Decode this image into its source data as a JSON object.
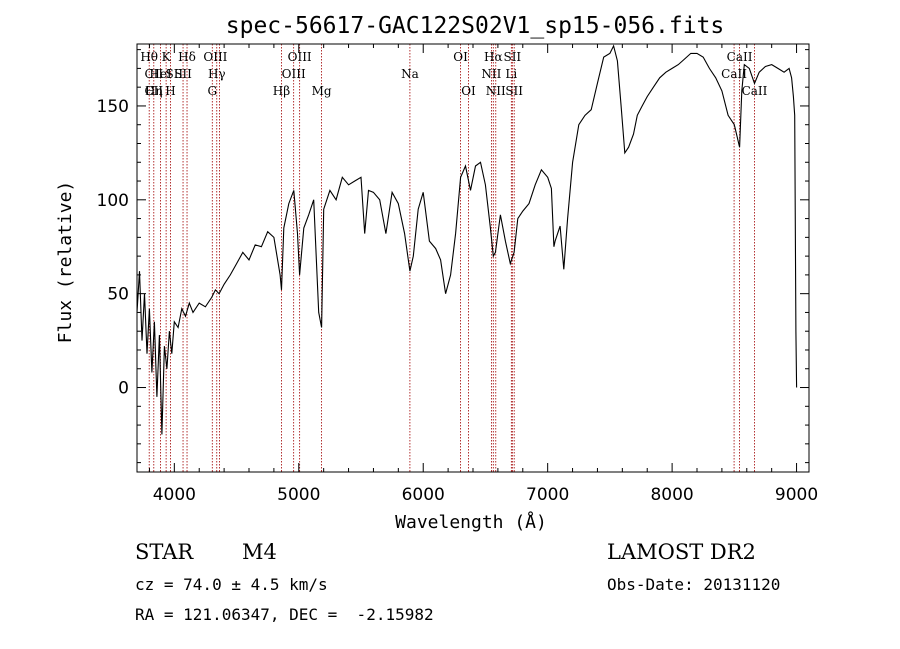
{
  "chart_data": {
    "type": "line",
    "title": "spec-56617-GAC122S02V1_sp15-056.fits",
    "xlabel": "Wavelength (Å)",
    "ylabel": "Flux (relative)",
    "xlim": [
      3700,
      9100
    ],
    "ylim": [
      -45,
      183
    ],
    "xticks": [
      4000,
      5000,
      6000,
      7000,
      8000,
      9000
    ],
    "yticks": [
      0,
      50,
      100,
      150
    ],
    "grid": false,
    "series": [
      {
        "color": "#000000",
        "x": [
          3700,
          3720,
          3740,
          3760,
          3780,
          3800,
          3820,
          3840,
          3860,
          3880,
          3900,
          3920,
          3940,
          3960,
          3980,
          4000,
          4030,
          4060,
          4090,
          4120,
          4150,
          4200,
          4250,
          4300,
          4330,
          4360,
          4400,
          4450,
          4500,
          4550,
          4600,
          4650,
          4700,
          4750,
          4800,
          4850,
          4861,
          4880,
          4920,
          4960,
          4990,
          5007,
          5040,
          5080,
          5120,
          5160,
          5183,
          5200,
          5250,
          5300,
          5350,
          5400,
          5450,
          5500,
          5530,
          5560,
          5600,
          5650,
          5700,
          5750,
          5800,
          5850,
          5893,
          5920,
          5960,
          6000,
          6050,
          6100,
          6140,
          6180,
          6220,
          6260,
          6300,
          6340,
          6380,
          6420,
          6460,
          6500,
          6540,
          6563,
          6580,
          6620,
          6660,
          6700,
          6730,
          6760,
          6800,
          6850,
          6900,
          6950,
          7000,
          7030,
          7050,
          7060,
          7080,
          7100,
          7130,
          7160,
          7200,
          7250,
          7300,
          7350,
          7400,
          7450,
          7500,
          7530,
          7560,
          7590,
          7620,
          7650,
          7690,
          7720,
          7760,
          7800,
          7850,
          7900,
          7950,
          8000,
          8050,
          8100,
          8150,
          8200,
          8250,
          8300,
          8350,
          8400,
          8450,
          8500,
          8542,
          8560,
          8580,
          8620,
          8662,
          8700,
          8750,
          8800,
          8850,
          8900,
          8940,
          8960,
          8975,
          8985,
          8995,
          9000
        ],
        "y": [
          40,
          62,
          25,
          50,
          18,
          42,
          8,
          35,
          -5,
          28,
          -25,
          22,
          10,
          30,
          18,
          35,
          32,
          42,
          38,
          45,
          40,
          45,
          43,
          48,
          52,
          50,
          55,
          60,
          66,
          72,
          68,
          76,
          75,
          83,
          80,
          60,
          52,
          85,
          98,
          105,
          82,
          60,
          85,
          92,
          100,
          40,
          32,
          95,
          105,
          100,
          112,
          108,
          110,
          112,
          82,
          105,
          104,
          100,
          82,
          104,
          98,
          82,
          62,
          70,
          95,
          104,
          78,
          74,
          68,
          50,
          60,
          82,
          112,
          118,
          105,
          118,
          120,
          108,
          85,
          70,
          72,
          92,
          78,
          66,
          72,
          90,
          94,
          98,
          108,
          116,
          112,
          106,
          75,
          78,
          82,
          86,
          63,
          90,
          120,
          140,
          145,
          148,
          162,
          176,
          178,
          182,
          174,
          150,
          125,
          128,
          135,
          145,
          150,
          155,
          160,
          165,
          168,
          170,
          172,
          175,
          178,
          178,
          176,
          170,
          165,
          158,
          145,
          140,
          128,
          158,
          172,
          170,
          162,
          168,
          171,
          172,
          170,
          168,
          170,
          165,
          155,
          145,
          30,
          0
        ]
      }
    ],
    "line_ids": [
      {
        "label": "Hθ",
        "x": 3798,
        "row": 1
      },
      {
        "label": "CII",
        "x": 3835,
        "row": 2
      },
      {
        "label": "CII",
        "x": 3835,
        "row": 3
      },
      {
        "label": "Hη",
        "x": 3835,
        "row": 3
      },
      {
        "label": "HeI",
        "x": 3889,
        "row": 2
      },
      {
        "label": "K",
        "x": 3934,
        "row": 1
      },
      {
        "label": "H",
        "x": 3969,
        "row": 3
      },
      {
        "label": "SII",
        "x": 4000,
        "row": 2
      },
      {
        "label": "Hδ",
        "x": 4102,
        "row": 1
      },
      {
        "label": "SII",
        "x": 4070,
        "row": 2
      },
      {
        "label": "OIII",
        "x": 4330,
        "row": 1
      },
      {
        "label": "Hγ",
        "x": 4341,
        "row": 2
      },
      {
        "label": "G",
        "x": 4305,
        "row": 3
      },
      {
        "label": "Hβ",
        "x": 4861,
        "row": 3
      },
      {
        "label": "OIII",
        "x": 5007,
        "row": 1
      },
      {
        "label": "OIII",
        "x": 4959,
        "row": 2
      },
      {
        "label": "Mg",
        "x": 5183,
        "row": 3
      },
      {
        "label": "Na",
        "x": 5893,
        "row": 2
      },
      {
        "label": "OI",
        "x": 6300,
        "row": 1
      },
      {
        "label": "OI",
        "x": 6364,
        "row": 3
      },
      {
        "label": "Hα",
        "x": 6563,
        "row": 1
      },
      {
        "label": "NII",
        "x": 6548,
        "row": 2
      },
      {
        "label": "NII",
        "x": 6583,
        "row": 3
      },
      {
        "label": "SII",
        "x": 6716,
        "row": 1
      },
      {
        "label": "Li",
        "x": 6708,
        "row": 2
      },
      {
        "label": "SII",
        "x": 6731,
        "row": 3
      },
      {
        "label": "CaII",
        "x": 8542,
        "row": 1
      },
      {
        "label": "CaII",
        "x": 8498,
        "row": 2
      },
      {
        "label": "CaII",
        "x": 8662,
        "row": 3
      }
    ],
    "line_markers": [
      3798,
      3835,
      3889,
      3934,
      3969,
      4070,
      4102,
      4305,
      4341,
      4363,
      4861,
      4959,
      5007,
      5183,
      5893,
      6300,
      6364,
      6548,
      6563,
      6583,
      6708,
      6716,
      6731,
      8498,
      8542,
      8662
    ]
  },
  "info": {
    "obj_class": "STAR",
    "subclass": "M4",
    "survey": "LAMOST DR2",
    "cz": "cz = 74.0 ± 4.5 km/s",
    "obs_date": "Obs-Date: 20131120",
    "radec": "RA = 121.06347, DEC =  -2.15982"
  }
}
